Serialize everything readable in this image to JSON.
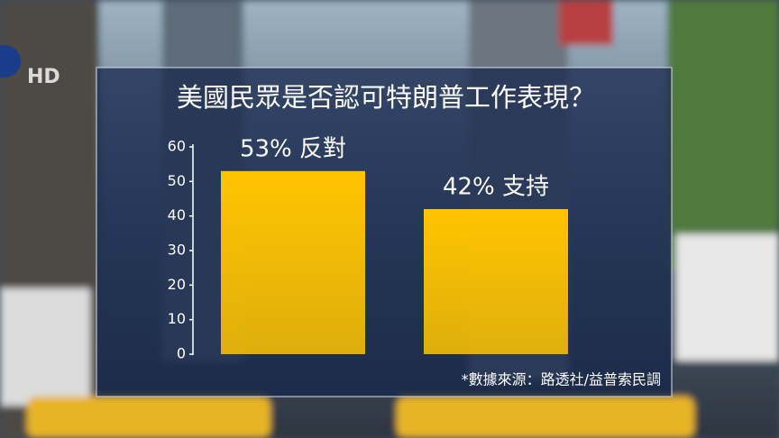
{
  "logo_text": "HD",
  "chart_data": {
    "type": "bar",
    "title": "美國民眾是否認可特朗普工作表現？",
    "categories": [
      null,
      null
    ],
    "values": [
      53,
      42
    ],
    "value_labels": [
      "53% 反對",
      "42% 支持"
    ],
    "color": "#ffc400",
    "ylim": [
      0,
      60
    ],
    "yticks": [
      0,
      10,
      20,
      30,
      40,
      50,
      60
    ],
    "source": "*數據來源：路透社/益普索民調"
  }
}
